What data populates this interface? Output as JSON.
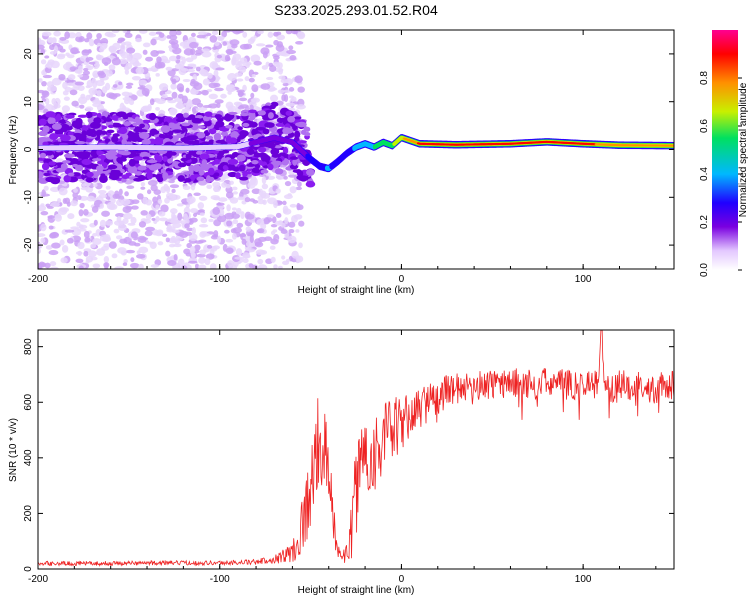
{
  "figure": {
    "title": "S233.2025.293.01.52.R04"
  },
  "chart_data": [
    {
      "type": "heatmap",
      "name": "spectrogram",
      "xlabel": "Height of straight line (km)",
      "ylabel": "Frequency (Hz)",
      "xlim": [
        -200,
        150
      ],
      "ylim": [
        -25,
        25
      ],
      "xticks": [
        -200,
        -100,
        0,
        100
      ],
      "yticks": [
        -20,
        -10,
        0,
        10,
        20
      ],
      "colorbar": {
        "label": "Normalized spectral amplitude",
        "range": [
          0.0,
          1.0
        ],
        "ticks": [
          0.0,
          0.2,
          0.4,
          0.6,
          0.8
        ],
        "tick_labels": [
          "0.0",
          "0.2",
          "0.4",
          "0.6",
          "0.8"
        ],
        "colors": [
          "#ffffff",
          "#e6d0ff",
          "#7a00e0",
          "#2000ff",
          "#00b8ff",
          "#00e060",
          "#c8f000",
          "#ff9000",
          "#ff0000",
          "#ff0090"
        ]
      },
      "ridge": {
        "description": "main carrier line in frequency vs height",
        "x": [
          -200,
          -160,
          -120,
          -90,
          -70,
          -60,
          -50,
          -45,
          -40,
          -35,
          -30,
          -25,
          -20,
          -15,
          -10,
          -5,
          0,
          10,
          30,
          60,
          80,
          100,
          120,
          150
        ],
        "y": [
          0.3,
          0.5,
          0.3,
          0.6,
          2.5,
          1.5,
          -2.0,
          -3.5,
          -4.0,
          -2.5,
          -0.8,
          0.5,
          1.2,
          0.5,
          1.5,
          0.8,
          2.5,
          1.2,
          1.0,
          1.2,
          1.6,
          1.2,
          0.9,
          0.8
        ],
        "peak_amplitude": [
          0.15,
          0.15,
          0.15,
          0.15,
          0.2,
          0.2,
          0.3,
          0.35,
          0.4,
          0.35,
          0.35,
          0.4,
          0.45,
          0.5,
          0.55,
          0.6,
          0.7,
          0.85,
          0.85,
          0.85,
          0.9,
          0.85,
          0.8,
          0.75
        ]
      }
    },
    {
      "type": "line",
      "name": "snr",
      "xlabel": "Height of straight line (km)",
      "ylabel": "SNR (10 * v/v)",
      "xlim": [
        -200,
        150
      ],
      "ylim": [
        0,
        860
      ],
      "xticks": [
        -200,
        -100,
        0,
        100
      ],
      "yticks": [
        0,
        200,
        400,
        600,
        800
      ],
      "color": "#ee2222",
      "series": [
        {
          "name": "SNR",
          "x": [
            -200,
            -180,
            -160,
            -140,
            -120,
            -100,
            -80,
            -70,
            -60,
            -55,
            -50,
            -47,
            -45,
            -43,
            -41,
            -39,
            -37,
            -35,
            -32,
            -30,
            -28,
            -26,
            -24,
            -22,
            -20,
            -18,
            -15,
            -12,
            -10,
            -8,
            -5,
            -2,
            0,
            3,
            6,
            10,
            15,
            20,
            25,
            30,
            40,
            50,
            60,
            70,
            80,
            90,
            100,
            108,
            110,
            112,
            120,
            130,
            140,
            150
          ],
          "y": [
            20,
            20,
            20,
            22,
            22,
            22,
            25,
            35,
            60,
            150,
            280,
            420,
            470,
            440,
            380,
            260,
            150,
            70,
            40,
            60,
            110,
            220,
            330,
            400,
            430,
            380,
            420,
            450,
            460,
            480,
            500,
            510,
            520,
            540,
            560,
            580,
            600,
            620,
            640,
            650,
            660,
            665,
            670,
            665,
            670,
            665,
            660,
            670,
            860,
            640,
            665,
            660,
            650,
            660
          ],
          "y_noise_amplitude": [
            8,
            8,
            8,
            8,
            8,
            8,
            10,
            15,
            40,
            110,
            150,
            180,
            160,
            160,
            140,
            120,
            70,
            30,
            25,
            40,
            90,
            150,
            170,
            170,
            160,
            150,
            150,
            140,
            140,
            130,
            120,
            110,
            100,
            90,
            80,
            75,
            70,
            65,
            60,
            55,
            55,
            55,
            55,
            55,
            55,
            55,
            55,
            55,
            0,
            55,
            55,
            55,
            55,
            55
          ]
        }
      ]
    }
  ]
}
